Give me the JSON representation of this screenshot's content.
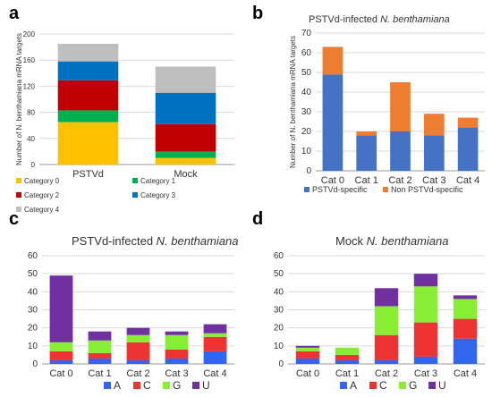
{
  "panels": {
    "a": "a",
    "b": "b",
    "c": "c",
    "d": "d"
  },
  "chart_data": [
    {
      "id": "a",
      "type": "bar",
      "stacked": true,
      "title": "",
      "ylabel": "Number of N. benthamiana mRNA targets",
      "ylim": [
        0,
        200
      ],
      "yticks": [
        0,
        40,
        80,
        120,
        160,
        200
      ],
      "categories": [
        "PSTVd",
        "Mock"
      ],
      "series": [
        {
          "name": "Category 0",
          "color": "#ffc000",
          "values": [
            65,
            10
          ]
        },
        {
          "name": "Category 1",
          "color": "#00b050",
          "values": [
            18,
            10
          ]
        },
        {
          "name": "Category 2",
          "color": "#c00000",
          "values": [
            46,
            42
          ]
        },
        {
          "name": "Category 3",
          "color": "#0070c0",
          "values": [
            29,
            48
          ]
        },
        {
          "name": "Category 4",
          "color": "#bfbfbf",
          "values": [
            27,
            40
          ]
        }
      ],
      "legend": "bottom",
      "grid": true
    },
    {
      "id": "b",
      "type": "bar",
      "stacked": true,
      "title_prefix": "PSTVd-infected ",
      "title_italic": "N. benthamiana",
      "ylabel": "Number of N. benthamiana mRNA targets",
      "ylim": [
        0,
        70
      ],
      "yticks": [
        0,
        10,
        20,
        30,
        40,
        50,
        60,
        70
      ],
      "categories": [
        "Cat 0",
        "Cat 1",
        "Cat 2",
        "Cat 3",
        "Cat 4"
      ],
      "series": [
        {
          "name": "PSTVd-specific",
          "color": "#4472c4",
          "values": [
            49,
            18,
            20,
            18,
            22
          ]
        },
        {
          "name": "Non PSTVd-specific",
          "color": "#ed7d31",
          "values": [
            14,
            2,
            25,
            11,
            5
          ]
        }
      ],
      "legend": "bottom",
      "grid": true
    },
    {
      "id": "c",
      "type": "bar",
      "stacked": true,
      "title_prefix": "PSTVd-infected ",
      "title_italic": "N. benthamiana",
      "ylim": [
        0,
        60
      ],
      "yticks": [
        0,
        10,
        20,
        30,
        40,
        50,
        60
      ],
      "categories": [
        "Cat 0",
        "Cat 1",
        "Cat 2",
        "Cat 3",
        "Cat 4"
      ],
      "series": [
        {
          "name": "A",
          "color": "#3366ee",
          "values": [
            2,
            3,
            2,
            3,
            7
          ]
        },
        {
          "name": "C",
          "color": "#ee3333",
          "values": [
            5,
            3,
            10,
            5,
            8
          ]
        },
        {
          "name": "G",
          "color": "#88ee33",
          "values": [
            5,
            7,
            4,
            8,
            2
          ]
        },
        {
          "name": "U",
          "color": "#7030a0",
          "values": [
            37,
            5,
            4,
            2,
            5
          ]
        }
      ],
      "legend": "bottom",
      "grid": true
    },
    {
      "id": "d",
      "type": "bar",
      "stacked": true,
      "title_prefix": "Mock ",
      "title_italic": "N. benthamiana",
      "ylim": [
        0,
        60
      ],
      "yticks": [
        0,
        10,
        20,
        30,
        40,
        50,
        60
      ],
      "categories": [
        "Cat 0",
        "Cat 1",
        "Cat 2",
        "Cat 3",
        "Cat 4"
      ],
      "series": [
        {
          "name": "A",
          "color": "#3366ee",
          "values": [
            3,
            2,
            2,
            4,
            14
          ]
        },
        {
          "name": "C",
          "color": "#ee3333",
          "values": [
            4,
            3,
            14,
            19,
            11
          ]
        },
        {
          "name": "G",
          "color": "#88ee33",
          "values": [
            2,
            4,
            16,
            20,
            11
          ]
        },
        {
          "name": "U",
          "color": "#7030a0",
          "values": [
            1,
            0,
            10,
            7,
            2
          ]
        }
      ],
      "legend": "bottom",
      "grid": true
    }
  ]
}
